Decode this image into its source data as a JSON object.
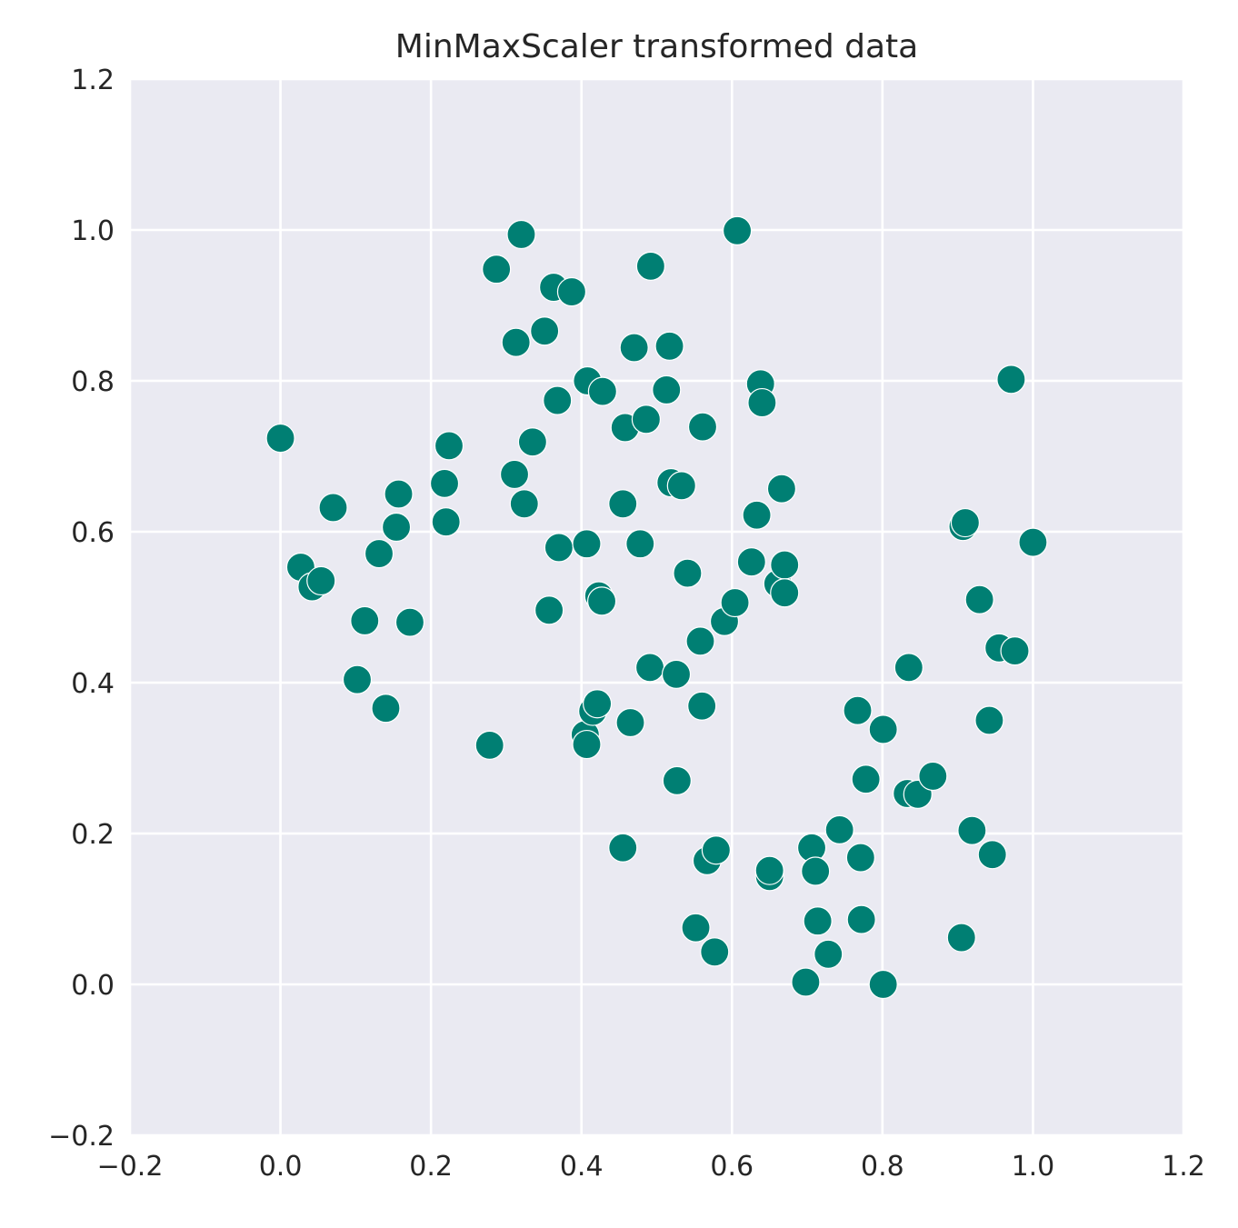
{
  "chart_data": {
    "type": "scatter",
    "title": "MinMaxScaler transformed data",
    "xlabel": "",
    "ylabel": "",
    "xlim": [
      -0.2,
      1.2
    ],
    "ylim": [
      -0.2,
      1.2
    ],
    "xticks": [
      "−0.2",
      "0.0",
      "0.2",
      "0.4",
      "0.6",
      "0.8",
      "1.0",
      "1.2"
    ],
    "yticks": [
      "−0.2",
      "0.0",
      "0.2",
      "0.4",
      "0.6",
      "0.8",
      "1.0",
      "1.2"
    ],
    "grid": true,
    "legend": "none",
    "colors": {
      "background": "#eaeaf2",
      "grid": "#ffffff",
      "marker": "#007f73"
    },
    "points": [
      [
        0.0,
        0.724
      ],
      [
        0.027,
        0.553
      ],
      [
        0.042,
        0.527
      ],
      [
        0.054,
        0.535
      ],
      [
        0.07,
        0.632
      ],
      [
        0.102,
        0.404
      ],
      [
        0.112,
        0.482
      ],
      [
        0.131,
        0.571
      ],
      [
        0.14,
        0.366
      ],
      [
        0.154,
        0.606
      ],
      [
        0.157,
        0.65
      ],
      [
        0.172,
        0.48
      ],
      [
        0.218,
        0.664
      ],
      [
        0.22,
        0.613
      ],
      [
        0.224,
        0.714
      ],
      [
        0.278,
        0.317
      ],
      [
        0.287,
        0.948
      ],
      [
        0.311,
        0.676
      ],
      [
        0.313,
        0.851
      ],
      [
        0.32,
        0.994
      ],
      [
        0.324,
        0.637
      ],
      [
        0.335,
        0.719
      ],
      [
        0.351,
        0.866
      ],
      [
        0.357,
        0.496
      ],
      [
        0.363,
        0.924
      ],
      [
        0.368,
        0.774
      ],
      [
        0.37,
        0.579
      ],
      [
        0.387,
        0.918
      ],
      [
        0.405,
        0.331
      ],
      [
        0.407,
        0.318
      ],
      [
        0.408,
        0.8
      ],
      [
        0.407,
        0.584
      ],
      [
        0.415,
        0.362
      ],
      [
        0.421,
        0.372
      ],
      [
        0.423,
        0.515
      ],
      [
        0.427,
        0.508
      ],
      [
        0.428,
        0.786
      ],
      [
        0.455,
        0.637
      ],
      [
        0.455,
        0.181
      ],
      [
        0.458,
        0.738
      ],
      [
        0.465,
        0.347
      ],
      [
        0.47,
        0.844
      ],
      [
        0.478,
        0.584
      ],
      [
        0.486,
        0.749
      ],
      [
        0.491,
        0.42
      ],
      [
        0.492,
        0.952
      ],
      [
        0.513,
        0.788
      ],
      [
        0.517,
        0.846
      ],
      [
        0.519,
        0.665
      ],
      [
        0.526,
        0.411
      ],
      [
        0.527,
        0.27
      ],
      [
        0.533,
        0.661
      ],
      [
        0.541,
        0.545
      ],
      [
        0.552,
        0.075
      ],
      [
        0.558,
        0.455
      ],
      [
        0.56,
        0.369
      ],
      [
        0.561,
        0.739
      ],
      [
        0.567,
        0.164
      ],
      [
        0.577,
        0.043
      ],
      [
        0.579,
        0.178
      ],
      [
        0.59,
        0.481
      ],
      [
        0.604,
        0.506
      ],
      [
        0.607,
        0.999
      ],
      [
        0.626,
        0.56
      ],
      [
        0.633,
        0.622
      ],
      [
        0.638,
        0.796
      ],
      [
        0.64,
        0.771
      ],
      [
        0.65,
        0.143
      ],
      [
        0.65,
        0.151
      ],
      [
        0.661,
        0.531
      ],
      [
        0.666,
        0.657
      ],
      [
        0.67,
        0.556
      ],
      [
        0.67,
        0.519
      ],
      [
        0.698,
        0.003
      ],
      [
        0.706,
        0.181
      ],
      [
        0.711,
        0.15
      ],
      [
        0.714,
        0.084
      ],
      [
        0.728,
        0.04
      ],
      [
        0.743,
        0.205
      ],
      [
        0.767,
        0.363
      ],
      [
        0.771,
        0.168
      ],
      [
        0.772,
        0.086
      ],
      [
        0.778,
        0.272
      ],
      [
        0.801,
        0.338
      ],
      [
        0.801,
        0.0
      ],
      [
        0.833,
        0.253
      ],
      [
        0.835,
        0.42
      ],
      [
        0.847,
        0.252
      ],
      [
        0.867,
        0.276
      ],
      [
        0.905,
        0.062
      ],
      [
        0.907,
        0.607
      ],
      [
        0.91,
        0.612
      ],
      [
        0.919,
        0.204
      ],
      [
        0.929,
        0.51
      ],
      [
        0.942,
        0.35
      ],
      [
        0.946,
        0.172
      ],
      [
        0.955,
        0.446
      ],
      [
        0.971,
        0.802
      ],
      [
        0.976,
        0.442
      ],
      [
        1.0,
        0.586
      ]
    ]
  }
}
